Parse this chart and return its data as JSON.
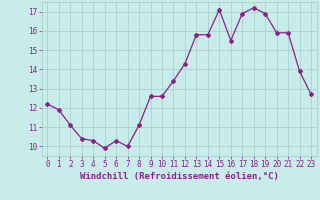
{
  "x": [
    0,
    1,
    2,
    3,
    4,
    5,
    6,
    7,
    8,
    9,
    10,
    11,
    12,
    13,
    14,
    15,
    16,
    17,
    18,
    19,
    20,
    21,
    22,
    23
  ],
  "y": [
    12.2,
    11.9,
    11.1,
    10.4,
    10.3,
    9.9,
    10.3,
    10.0,
    11.1,
    12.6,
    12.6,
    13.4,
    14.3,
    15.8,
    15.8,
    17.1,
    15.5,
    16.9,
    17.2,
    16.9,
    15.9,
    15.9,
    13.9,
    12.7
  ],
  "line_color": "#882288",
  "marker": "D",
  "markersize": 2.0,
  "linewidth": 0.9,
  "bg_color": "#c8ecea",
  "grid_color": "#a8cac8",
  "xlabel": "Windchill (Refroidissement éolien,°C)",
  "ylim": [
    9.5,
    17.5
  ],
  "yticks": [
    10,
    11,
    12,
    13,
    14,
    15,
    16,
    17
  ],
  "xticks": [
    0,
    1,
    2,
    3,
    4,
    5,
    6,
    7,
    8,
    9,
    10,
    11,
    12,
    13,
    14,
    15,
    16,
    17,
    18,
    19,
    20,
    21,
    22,
    23
  ],
  "xlabel_color": "#882288",
  "tick_color": "#882288",
  "tick_fontsize": 5.5,
  "xlabel_fontsize": 6.5,
  "xlabel_fontweight": "bold"
}
